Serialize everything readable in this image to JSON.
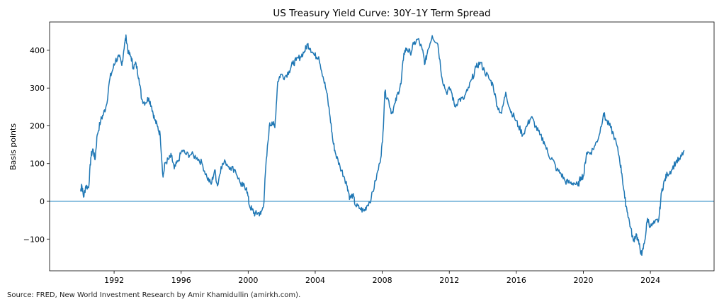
{
  "chart_data": {
    "type": "line",
    "title": "US Treasury Yield Curve: 30Y–1Y Term Spread",
    "xlabel": "",
    "ylabel": "Basis points",
    "xlim": [
      1988.15,
      2027.8
    ],
    "ylim": [
      -184,
      475
    ],
    "xticks": [
      1992,
      1996,
      2000,
      2004,
      2008,
      2012,
      2016,
      2020,
      2024
    ],
    "yticks": [
      -100,
      0,
      100,
      200,
      300,
      400
    ],
    "ytick_labels": [
      "−100",
      "0",
      "100",
      "200",
      "300",
      "400"
    ],
    "grid": false,
    "line_color": "#1f77b4",
    "zero_line": {
      "value": 0,
      "color": "#6baed6"
    },
    "x": [
      1990.0,
      1990.06,
      1990.18,
      1990.31,
      1990.48,
      1990.61,
      1990.73,
      1990.86,
      1990.99,
      1991.2,
      1991.37,
      1991.54,
      1991.75,
      1991.96,
      1992.08,
      1992.3,
      1992.46,
      1992.63,
      1992.72,
      1992.85,
      1993.01,
      1993.14,
      1993.31,
      1993.48,
      1993.65,
      1993.86,
      1994.07,
      1994.24,
      1994.41,
      1994.58,
      1994.75,
      1994.92,
      1995.04,
      1995.25,
      1995.42,
      1995.59,
      1995.8,
      1996.06,
      1996.31,
      1996.61,
      1996.95,
      1997.24,
      1997.54,
      1997.79,
      1998.0,
      1998.17,
      1998.38,
      1998.64,
      1998.93,
      1999.23,
      1999.56,
      1999.69,
      1999.9,
      2000.07,
      2000.24,
      2000.41,
      2000.58,
      2000.75,
      2000.92,
      2001.04,
      2001.26,
      2001.42,
      2001.59,
      2001.76,
      2001.93,
      2002.19,
      2002.44,
      2002.65,
      2002.86,
      2003.12,
      2003.37,
      2003.54,
      2003.71,
      2003.96,
      2004.21,
      2004.47,
      2004.68,
      2004.89,
      2005.06,
      2005.23,
      2005.48,
      2005.74,
      2005.91,
      2006.07,
      2006.24,
      2006.41,
      2006.67,
      2006.92,
      2007.09,
      2007.34,
      2007.6,
      2007.85,
      2008.02,
      2008.15,
      2008.36,
      2008.57,
      2008.78,
      2008.95,
      2009.12,
      2009.29,
      2009.46,
      2009.67,
      2009.88,
      2010.13,
      2010.39,
      2010.55,
      2010.72,
      2010.98,
      2011.32,
      2011.57,
      2011.82,
      2012.08,
      2012.33,
      2012.58,
      2012.84,
      2013.09,
      2013.35,
      2013.6,
      2013.85,
      2014.1,
      2014.36,
      2014.61,
      2014.87,
      2015.12,
      2015.37,
      2015.63,
      2015.88,
      2016.13,
      2016.39,
      2016.68,
      2016.89,
      2017.15,
      2017.4,
      2017.66,
      2017.91,
      2018.16,
      2018.42,
      2018.67,
      2018.92,
      2019.18,
      2019.43,
      2019.68,
      2019.85,
      2020.02,
      2020.19,
      2020.44,
      2020.7,
      2020.95,
      2021.2,
      2021.37,
      2021.63,
      2021.88,
      2022.13,
      2022.3,
      2022.47,
      2022.64,
      2022.81,
      2022.98,
      2023.15,
      2023.32,
      2023.49,
      2023.66,
      2023.83,
      2024.0,
      2024.25,
      2024.5,
      2024.67,
      2024.84,
      2025.01,
      2025.26,
      2025.52,
      2025.77,
      2026.02
    ],
    "y": [
      26,
      45,
      11,
      41,
      36,
      116,
      139,
      110,
      176,
      214,
      232,
      255,
      326,
      355,
      373,
      383,
      360,
      420,
      435,
      392,
      383,
      355,
      364,
      326,
      270,
      261,
      274,
      251,
      218,
      199,
      176,
      64,
      101,
      111,
      120,
      86,
      105,
      135,
      124,
      124,
      116,
      101,
      64,
      45,
      83,
      41,
      92,
      105,
      90,
      83,
      45,
      41,
      36,
      -11,
      -23,
      -34,
      -30,
      -34,
      -11,
      83,
      199,
      210,
      195,
      317,
      336,
      330,
      345,
      364,
      373,
      383,
      398,
      416,
      405,
      386,
      383,
      330,
      289,
      223,
      158,
      124,
      92,
      64,
      41,
      8,
      17,
      -11,
      -19,
      -26,
      -11,
      8,
      54,
      101,
      158,
      289,
      270,
      233,
      261,
      289,
      311,
      392,
      405,
      392,
      416,
      430,
      401,
      364,
      401,
      439,
      416,
      326,
      289,
      298,
      251,
      270,
      270,
      293,
      323,
      355,
      368,
      345,
      326,
      308,
      251,
      233,
      289,
      242,
      223,
      199,
      176,
      205,
      223,
      199,
      176,
      158,
      124,
      111,
      83,
      73,
      53,
      49,
      49,
      41,
      64,
      68,
      129,
      129,
      148,
      176,
      233,
      214,
      195,
      167,
      120,
      73,
      8,
      -30,
      -68,
      -105,
      -86,
      -114,
      -143,
      -105,
      -45,
      -68,
      -58,
      -49,
      26,
      54,
      73,
      83,
      105,
      111,
      135
    ]
  },
  "footer": {
    "source": "Source: FRED, New World Investment Research by Amir Khamidullin (amirkh.com)."
  }
}
